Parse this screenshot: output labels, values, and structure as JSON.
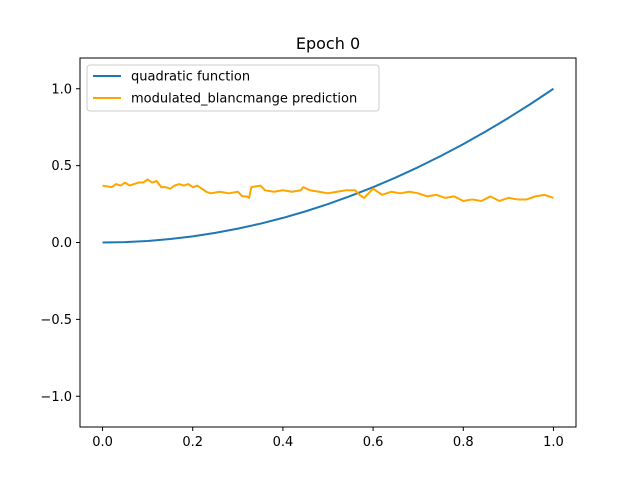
{
  "chart_data": {
    "type": "line",
    "title": "Epoch 0",
    "xlabel": "",
    "ylabel": "",
    "xlim": [
      -0.05,
      1.05
    ],
    "ylim": [
      -1.2,
      1.2
    ],
    "xticks": [
      0.0,
      0.2,
      0.4,
      0.6,
      0.8,
      1.0
    ],
    "xtick_labels": [
      "0.0",
      "0.2",
      "0.4",
      "0.6",
      "0.8",
      "1.0"
    ],
    "yticks": [
      -1.0,
      -0.5,
      0.0,
      0.5,
      1.0
    ],
    "ytick_labels": [
      "−1.0",
      "−0.5",
      "0.0",
      "0.5",
      "1.0"
    ],
    "grid": false,
    "legend_position": "top-left",
    "series": [
      {
        "name": "quadratic function",
        "color": "#1f77b4",
        "x": [
          0.0,
          0.05,
          0.1,
          0.15,
          0.2,
          0.25,
          0.3,
          0.35,
          0.4,
          0.45,
          0.5,
          0.55,
          0.6,
          0.65,
          0.7,
          0.75,
          0.8,
          0.85,
          0.9,
          0.95,
          1.0
        ],
        "y": [
          0.0,
          0.0025,
          0.01,
          0.0225,
          0.04,
          0.0625,
          0.09,
          0.1225,
          0.16,
          0.2025,
          0.25,
          0.3025,
          0.36,
          0.4225,
          0.49,
          0.5625,
          0.64,
          0.7225,
          0.81,
          0.9025,
          1.0
        ]
      },
      {
        "name": "modulated_blancmange prediction",
        "color": "#ffa500",
        "x": [
          0.0,
          0.02,
          0.03,
          0.04,
          0.05,
          0.06,
          0.07,
          0.08,
          0.09,
          0.1,
          0.11,
          0.12,
          0.13,
          0.14,
          0.15,
          0.16,
          0.17,
          0.18,
          0.19,
          0.2,
          0.21,
          0.22,
          0.23,
          0.24,
          0.26,
          0.28,
          0.3,
          0.31,
          0.32,
          0.325,
          0.33,
          0.35,
          0.36,
          0.38,
          0.4,
          0.42,
          0.44,
          0.445,
          0.46,
          0.48,
          0.5,
          0.52,
          0.54,
          0.56,
          0.57,
          0.58,
          0.6,
          0.62,
          0.64,
          0.66,
          0.68,
          0.7,
          0.72,
          0.74,
          0.76,
          0.78,
          0.8,
          0.82,
          0.84,
          0.86,
          0.88,
          0.9,
          0.92,
          0.94,
          0.96,
          0.98,
          1.0
        ],
        "y": [
          0.37,
          0.36,
          0.38,
          0.37,
          0.39,
          0.37,
          0.38,
          0.39,
          0.39,
          0.41,
          0.39,
          0.4,
          0.36,
          0.36,
          0.35,
          0.37,
          0.38,
          0.37,
          0.38,
          0.36,
          0.37,
          0.35,
          0.33,
          0.32,
          0.33,
          0.32,
          0.33,
          0.3,
          0.3,
          0.29,
          0.36,
          0.37,
          0.34,
          0.33,
          0.34,
          0.33,
          0.34,
          0.36,
          0.34,
          0.33,
          0.32,
          0.33,
          0.34,
          0.34,
          0.31,
          0.29,
          0.35,
          0.31,
          0.33,
          0.32,
          0.33,
          0.32,
          0.3,
          0.31,
          0.29,
          0.3,
          0.27,
          0.28,
          0.27,
          0.3,
          0.27,
          0.29,
          0.28,
          0.28,
          0.3,
          0.31,
          0.29
        ]
      }
    ]
  }
}
